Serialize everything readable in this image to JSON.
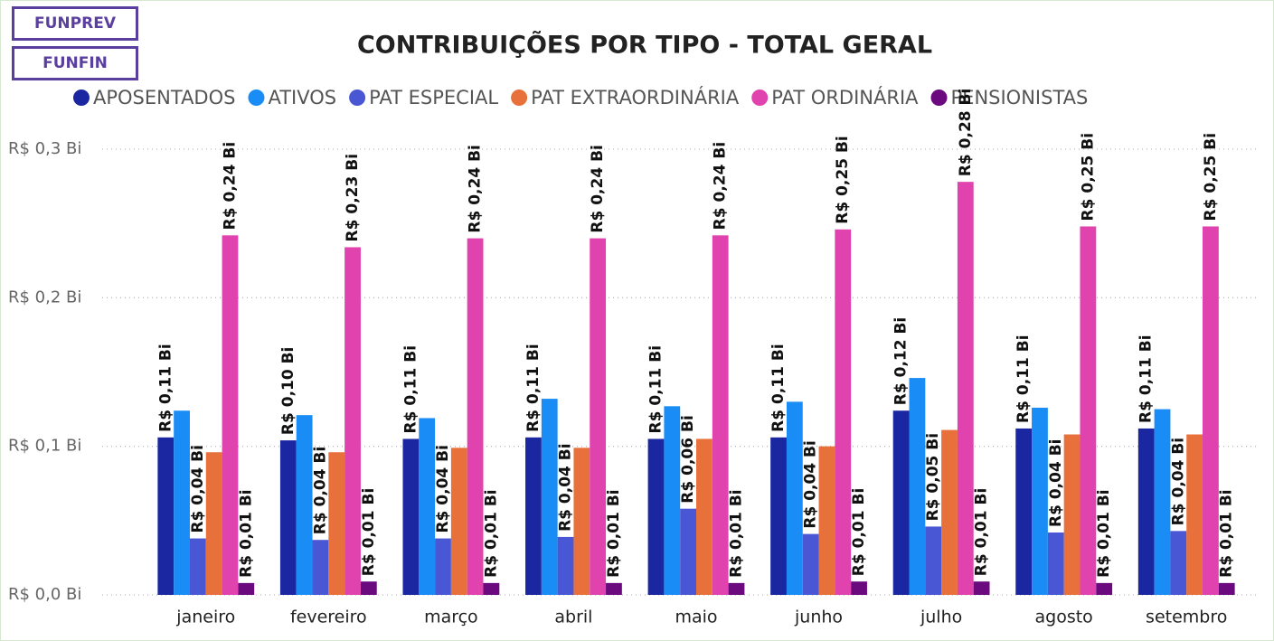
{
  "buttons": [
    "FUNPREV",
    "FUNFIN"
  ],
  "chart_data": {
    "type": "bar",
    "title": "CONTRIBUIÇÕES POR TIPO - TOTAL GERAL",
    "categories": [
      "janeiro",
      "fevereiro",
      "março",
      "abril",
      "maio",
      "junho",
      "julho",
      "agosto",
      "setembro"
    ],
    "series": [
      {
        "name": "APOSENTADOS",
        "color": "#1a27a0",
        "values": [
          0.106,
          0.104,
          0.105,
          0.106,
          0.105,
          0.106,
          0.124,
          0.112,
          0.112
        ],
        "value_labels": [
          "R$ 0,11 Bi",
          "R$ 0,10 Bi",
          "R$ 0,11 Bi",
          "R$ 0,11 Bi",
          "R$ 0,11 Bi",
          "R$ 0,11 Bi",
          "R$ 0,12 Bi",
          "R$ 0,11 Bi",
          "R$ 0,11 Bi"
        ]
      },
      {
        "name": "ATIVOS",
        "color": "#1a8cf5",
        "values": [
          0.124,
          0.121,
          0.119,
          0.132,
          0.127,
          0.13,
          0.146,
          0.126,
          0.125
        ]
      },
      {
        "name": "PAT ESPECIAL",
        "color": "#4a57d4",
        "values": [
          0.038,
          0.037,
          0.038,
          0.039,
          0.058,
          0.041,
          0.046,
          0.042,
          0.043
        ],
        "value_labels": [
          "R$ 0,04 Bi",
          "R$ 0,04 Bi",
          "R$ 0,04 Bi",
          "R$ 0,04 Bi",
          "R$ 0,06 Bi",
          "R$ 0,04 Bi",
          "R$ 0,05 Bi",
          "R$ 0,04 Bi",
          "R$ 0,04 Bi"
        ]
      },
      {
        "name": "PAT EXTRAORDINÁRIA",
        "color": "#e8703a",
        "values": [
          0.096,
          0.096,
          0.099,
          0.099,
          0.105,
          0.1,
          0.111,
          0.108,
          0.108
        ]
      },
      {
        "name": "PAT ORDINÁRIA",
        "color": "#e043ae",
        "values": [
          0.242,
          0.234,
          0.24,
          0.24,
          0.242,
          0.246,
          0.278,
          0.248,
          0.248
        ],
        "value_labels": [
          "R$ 0,24 Bi",
          "R$ 0,23 Bi",
          "R$ 0,24 Bi",
          "R$ 0,24 Bi",
          "R$ 0,24 Bi",
          "R$ 0,25 Bi",
          "R$ 0,28 Bi",
          "R$ 0,25 Bi",
          "R$ 0,25 Bi"
        ]
      },
      {
        "name": "PENSIONISTAS",
        "color": "#6b0a7f",
        "values": [
          0.008,
          0.009,
          0.008,
          0.008,
          0.008,
          0.009,
          0.009,
          0.008,
          0.008
        ],
        "value_labels": [
          "R$ 0,01 Bi",
          "R$ 0,01 Bi",
          "R$ 0,01 Bi",
          "R$ 0,01 Bi",
          "R$ 0,01 Bi",
          "R$ 0,01 Bi",
          "R$ 0,01 Bi",
          "R$ 0,01 Bi",
          "R$ 0,01 Bi"
        ]
      }
    ],
    "ylim": [
      0,
      0.3
    ],
    "yticks": [
      {
        "value": 0,
        "label": "R$ 0,0 Bi"
      },
      {
        "value": 0.1,
        "label": "R$ 0,1 Bi"
      },
      {
        "value": 0.2,
        "label": "R$ 0,2 Bi"
      },
      {
        "value": 0.3,
        "label": "R$ 0,3 Bi"
      }
    ],
    "grid": true,
    "legend": "top"
  }
}
